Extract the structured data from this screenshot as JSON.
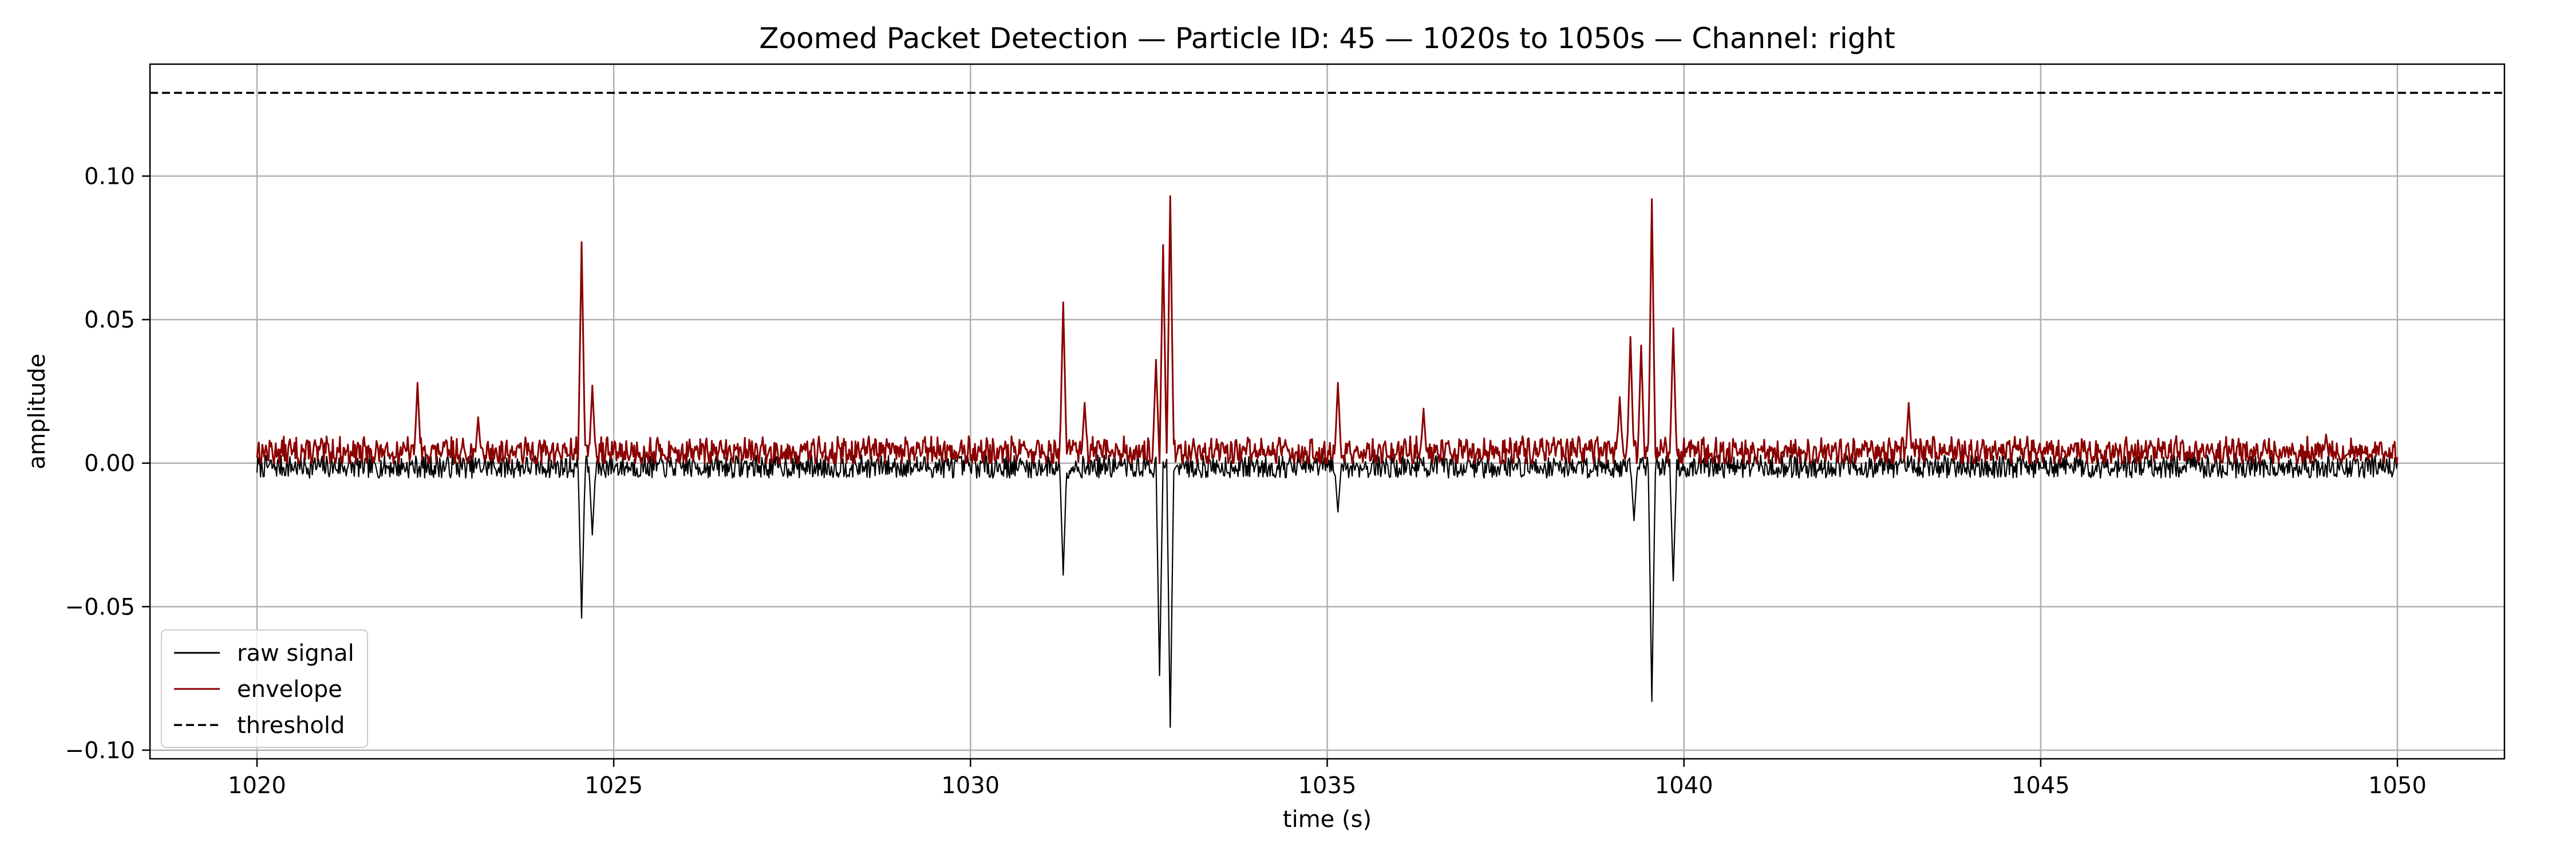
{
  "chart_data": {
    "type": "line",
    "title": "Zoomed Packet Detection — Particle ID: 45 — 1020s to 1050s — Channel: right",
    "xlabel": "time (s)",
    "ylabel": "amplitude",
    "xlim": [
      1018.5,
      1051.5
    ],
    "ylim": [
      -0.103,
      0.139
    ],
    "x_ticks": [
      1020,
      1025,
      1030,
      1035,
      1040,
      1045,
      1050
    ],
    "x_tick_labels": [
      "1020",
      "1025",
      "1030",
      "1035",
      "1040",
      "1045",
      "1050"
    ],
    "y_ticks": [
      -0.1,
      -0.05,
      0.0,
      0.05,
      0.1
    ],
    "y_tick_labels": [
      "−0.10",
      "−0.05",
      "0.00",
      "0.05",
      "0.10"
    ],
    "grid": true,
    "legend_position": "lower-left",
    "threshold": 0.129,
    "series": [
      {
        "name": "raw signal",
        "color": "#000000",
        "style": "solid",
        "noise_level": 0.004,
        "spikes": [
          {
            "x": 1024.55,
            "y": -0.054
          },
          {
            "x": 1024.7,
            "y": -0.025
          },
          {
            "x": 1031.3,
            "y": -0.039
          },
          {
            "x": 1032.65,
            "y": -0.074
          },
          {
            "x": 1032.8,
            "y": -0.092
          },
          {
            "x": 1035.15,
            "y": -0.017
          },
          {
            "x": 1039.55,
            "y": -0.083
          },
          {
            "x": 1039.85,
            "y": -0.041
          },
          {
            "x": 1039.3,
            "y": -0.02
          }
        ]
      },
      {
        "name": "envelope",
        "color": "#8b0000",
        "style": "solid",
        "noise_level": 0.005,
        "spikes": [
          {
            "x": 1022.25,
            "y": 0.028
          },
          {
            "x": 1023.1,
            "y": 0.016
          },
          {
            "x": 1024.55,
            "y": 0.077
          },
          {
            "x": 1024.7,
            "y": 0.027
          },
          {
            "x": 1031.3,
            "y": 0.056
          },
          {
            "x": 1031.6,
            "y": 0.021
          },
          {
            "x": 1032.6,
            "y": 0.036
          },
          {
            "x": 1032.7,
            "y": 0.076
          },
          {
            "x": 1032.8,
            "y": 0.093
          },
          {
            "x": 1035.15,
            "y": 0.028
          },
          {
            "x": 1036.35,
            "y": 0.019
          },
          {
            "x": 1039.1,
            "y": 0.023
          },
          {
            "x": 1039.25,
            "y": 0.044
          },
          {
            "x": 1039.4,
            "y": 0.041
          },
          {
            "x": 1039.55,
            "y": 0.092
          },
          {
            "x": 1039.85,
            "y": 0.047
          },
          {
            "x": 1043.15,
            "y": 0.021
          },
          {
            "x": 1049.0,
            "y": 0.01
          }
        ]
      },
      {
        "name": "threshold",
        "color": "#000000",
        "style": "dashed",
        "values": [
          0.129,
          0.129
        ]
      }
    ]
  }
}
